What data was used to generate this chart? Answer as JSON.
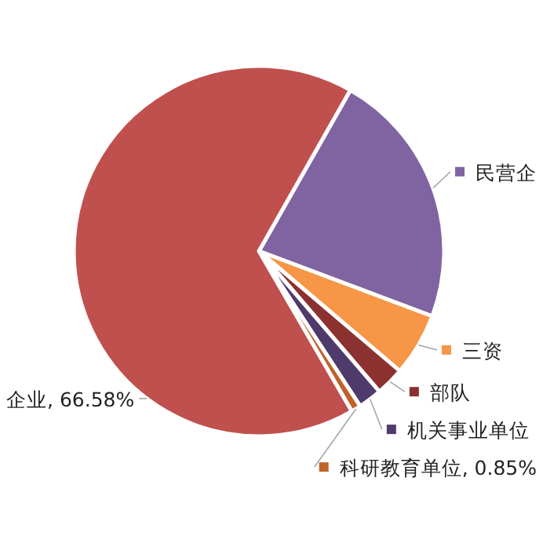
{
  "chart_data": {
    "type": "pie",
    "categories": [
      "民营企",
      "三资",
      "部队",
      "机关事业单位",
      "科研教育单位",
      "企业"
    ],
    "values": [
      22.5,
      5.5,
      2.5,
      2.07,
      0.85,
      66.58
    ],
    "value_labels": [
      null,
      null,
      null,
      null,
      "0.85%",
      "66.58%"
    ],
    "legend": "right",
    "colors": [
      "#8064a2",
      "#f79646",
      "#8b3130",
      "#4f3b6b",
      "#c0622a",
      "#c0504d"
    ]
  }
}
